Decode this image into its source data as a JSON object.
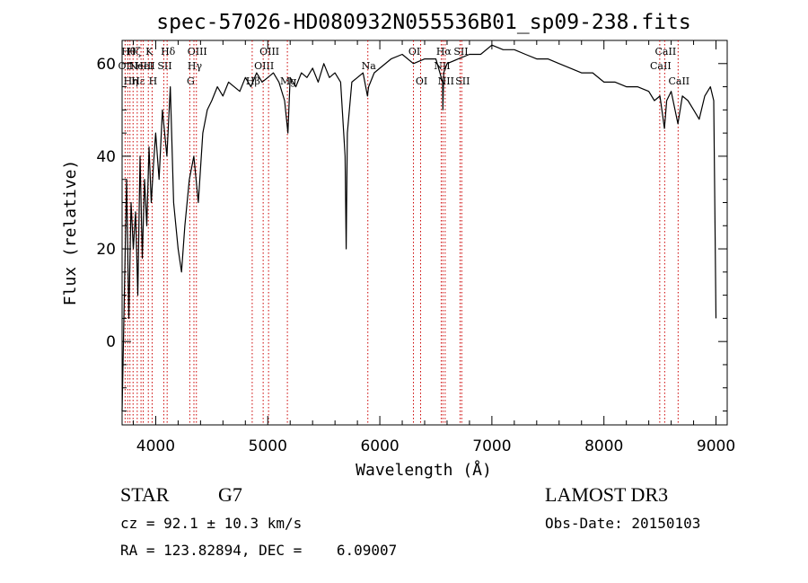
{
  "chart_data": {
    "type": "line",
    "title": "spec-57026-HD080932N055536B01_sp09-238.fits",
    "xlabel": "Wavelength (Å)",
    "ylabel": "Flux (relative)",
    "xlim": [
      3700,
      9100
    ],
    "ylim": [
      -18,
      65
    ],
    "xticks": [
      4000,
      5000,
      6000,
      7000,
      8000,
      9000
    ],
    "yticks": [
      0,
      20,
      40,
      60
    ],
    "grid": false,
    "line_color": "#000000",
    "marker_color": "#cc0000",
    "series": [
      {
        "x": [
          3700,
          3720,
          3740,
          3760,
          3780,
          3800,
          3820,
          3840,
          3860,
          3880,
          3900,
          3920,
          3940,
          3960,
          3980,
          4000,
          4030,
          4060,
          4100,
          4130,
          4160,
          4200,
          4230,
          4260,
          4300,
          4340,
          4380,
          4420,
          4460,
          4500,
          4550,
          4600,
          4650,
          4700,
          4750,
          4800,
          4850,
          4900,
          4950,
          5000,
          5050,
          5100,
          5150,
          5180,
          5200,
          5250,
          5300,
          5350,
          5400,
          5450,
          5500,
          5550,
          5600,
          5650,
          5690,
          5700,
          5710,
          5750,
          5800,
          5850,
          5890,
          5900,
          5950,
          6000,
          6100,
          6200,
          6300,
          6400,
          6500,
          6560,
          6563,
          6570,
          6600,
          6700,
          6800,
          6900,
          7000,
          7100,
          7200,
          7300,
          7400,
          7500,
          7600,
          7700,
          7800,
          7900,
          8000,
          8100,
          8200,
          8300,
          8400,
          8450,
          8500,
          8540,
          8560,
          8600,
          8660,
          8700,
          8750,
          8800,
          8850,
          8900,
          8950,
          8980,
          9000
        ],
        "y": [
          -15,
          10,
          35,
          5,
          30,
          20,
          28,
          10,
          40,
          18,
          35,
          25,
          42,
          30,
          38,
          45,
          35,
          50,
          40,
          55,
          30,
          20,
          15,
          25,
          35,
          40,
          30,
          45,
          50,
          52,
          55,
          53,
          56,
          55,
          54,
          57,
          55,
          58,
          56,
          57,
          58,
          56,
          52,
          45,
          57,
          55,
          58,
          57,
          59,
          56,
          60,
          57,
          58,
          56,
          40,
          20,
          45,
          56,
          57,
          58,
          53,
          55,
          58,
          59,
          61,
          62,
          60,
          61,
          61,
          56,
          50,
          58,
          60,
          61,
          62,
          62,
          64,
          63,
          63,
          62,
          61,
          61,
          60,
          59,
          58,
          58,
          56,
          56,
          55,
          55,
          54,
          52,
          53,
          46,
          52,
          54,
          47,
          53,
          52,
          50,
          48,
          53,
          55,
          52,
          5
        ]
      }
    ],
    "line_markers": [
      {
        "x": 3727,
        "label": "OII",
        "row": 2
      },
      {
        "x": 3750,
        "label": "Hθ",
        "row": 1
      },
      {
        "x": 3770,
        "label": "Hη",
        "row": 3
      },
      {
        "x": 3798,
        "label": "Hζ",
        "row": 1
      },
      {
        "x": 3835,
        "label": "Hε",
        "row": 3
      },
      {
        "x": 3869,
        "label": "NeIII",
        "row": 2
      },
      {
        "x": 3889,
        "label": "HeI",
        "row": 2
      },
      {
        "x": 3934,
        "label": "K",
        "row": 1
      },
      {
        "x": 3968,
        "label": "H",
        "row": 3
      },
      {
        "x": 4072,
        "label": "SII",
        "row": 2
      },
      {
        "x": 4102,
        "label": "Hδ",
        "row": 1
      },
      {
        "x": 4304,
        "label": "G",
        "row": 3
      },
      {
        "x": 4341,
        "label": "Hγ",
        "row": 2
      },
      {
        "x": 4363,
        "label": "OIII",
        "row": 1
      },
      {
        "x": 4861,
        "label": "Hβ",
        "row": 3
      },
      {
        "x": 4959,
        "label": "OIII",
        "row": 2
      },
      {
        "x": 5007,
        "label": "OIII",
        "row": 1
      },
      {
        "x": 5175,
        "label": "Mg",
        "row": 3
      },
      {
        "x": 5893,
        "label": "Na",
        "row": 2
      },
      {
        "x": 6300,
        "label": "OI",
        "row": 1
      },
      {
        "x": 6364,
        "label": "OI",
        "row": 3
      },
      {
        "x": 6548,
        "label": "NII",
        "row": 2
      },
      {
        "x": 6563,
        "label": "Hα",
        "row": 1
      },
      {
        "x": 6583,
        "label": "NII",
        "row": 3
      },
      {
        "x": 6716,
        "label": "SII",
        "row": 1
      },
      {
        "x": 6731,
        "label": "SII",
        "row": 3
      },
      {
        "x": 8498,
        "label": "CaII",
        "row": 2
      },
      {
        "x": 8542,
        "label": "CaII",
        "row": 1
      },
      {
        "x": 8662,
        "label": "CaII",
        "row": 3
      }
    ]
  },
  "footer": {
    "object_type": "STAR",
    "subclass": "G7",
    "survey": "LAMOST DR3",
    "cz": "cz = 92.1 ± 10.3 km/s",
    "obs_date": "Obs-Date: 20150103",
    "coords": "RA = 123.82894, DEC =    6.09007"
  }
}
